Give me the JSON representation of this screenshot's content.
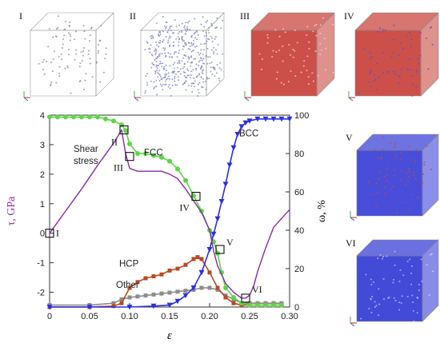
{
  "panels": {
    "top": [
      {
        "label": "I",
        "color": "#bfbfbf",
        "density": "sparse"
      },
      {
        "label": "II",
        "color": "#7a80c8",
        "density": "dense"
      },
      {
        "label": "III",
        "color": "#c9473f",
        "density": "fcc"
      },
      {
        "label": "IV",
        "color": "#c9473f",
        "density": "fcc-mixed"
      }
    ],
    "side": [
      {
        "label": "V",
        "color": "#3e44d8",
        "density": "bcc-mixed"
      },
      {
        "label": "VI",
        "color": "#3a40d6",
        "density": "bcc"
      }
    ]
  },
  "chart_data": {
    "type": "line",
    "xlabel": "ε",
    "ylabel_left": "τ, GPa",
    "ylabel_right": "ω, %",
    "xlim": [
      0,
      0.3
    ],
    "ylim_left": [
      -2.5,
      4
    ],
    "ylim_right": [
      0,
      100
    ],
    "x_ticks": [
      "0",
      "0.05",
      "0.10",
      "0.15",
      "0.20",
      "0.25",
      "0.30"
    ],
    "y_left_ticks": [
      "-2",
      "-1",
      "0",
      "1",
      "2",
      "3",
      "4"
    ],
    "y_right_ticks": [
      "0",
      "20",
      "40",
      "60",
      "80",
      "100"
    ],
    "grid": false,
    "series": [
      {
        "name": "Shear stress",
        "axis": "left",
        "color": "#8a2aa8",
        "marker": "none",
        "x": [
          0,
          0.02,
          0.04,
          0.06,
          0.08,
          0.09,
          0.095,
          0.1,
          0.11,
          0.12,
          0.13,
          0.14,
          0.15,
          0.16,
          0.17,
          0.18,
          0.19,
          0.2,
          0.205,
          0.21,
          0.22,
          0.23,
          0.24,
          0.245,
          0.25,
          0.255,
          0.26,
          0.27,
          0.28,
          0.29,
          0.3
        ],
        "y": [
          0,
          0.75,
          1.5,
          2.3,
          3.05,
          3.5,
          2.7,
          2.2,
          2.1,
          2.1,
          2.1,
          2.1,
          2.0,
          1.85,
          1.5,
          1.1,
          0.7,
          0.1,
          -0.6,
          -1.1,
          -1.7,
          -2.0,
          -2.2,
          -2.2,
          -2.1,
          -1.8,
          -1.3,
          -0.5,
          0.2,
          0.5,
          0.8
        ]
      },
      {
        "name": "FCC",
        "axis": "right",
        "color": "#5cd645",
        "marker": "circle",
        "x": [
          0,
          0.01,
          0.02,
          0.03,
          0.04,
          0.05,
          0.06,
          0.07,
          0.08,
          0.09,
          0.095,
          0.1,
          0.11,
          0.12,
          0.13,
          0.14,
          0.15,
          0.16,
          0.17,
          0.18,
          0.19,
          0.2,
          0.205,
          0.21,
          0.215,
          0.22,
          0.23,
          0.24,
          0.25,
          0.26,
          0.27,
          0.28,
          0.29
        ],
        "y": [
          99,
          99,
          99,
          99,
          99,
          99,
          99,
          98,
          97,
          95,
          92,
          85,
          80,
          80,
          79,
          78,
          76,
          72,
          66,
          58,
          50,
          40,
          34,
          28,
          18,
          10,
          5,
          2,
          1,
          1,
          1,
          1,
          1
        ]
      },
      {
        "name": "BCC",
        "axis": "right",
        "color": "#2c30e0",
        "marker": "triangle-down",
        "x": [
          0,
          0.05,
          0.1,
          0.13,
          0.15,
          0.16,
          0.17,
          0.18,
          0.19,
          0.2,
          0.205,
          0.21,
          0.215,
          0.22,
          0.225,
          0.23,
          0.235,
          0.24,
          0.245,
          0.25,
          0.26,
          0.27,
          0.28,
          0.29,
          0.3
        ],
        "y": [
          0,
          0,
          0,
          0.5,
          1,
          3,
          6,
          10,
          18,
          30,
          38,
          46,
          55,
          64,
          74,
          83,
          90,
          94,
          96,
          97,
          98,
          98,
          98,
          98,
          98
        ]
      },
      {
        "name": "HCP",
        "axis": "right",
        "color": "#b84a26",
        "marker": "square",
        "x": [
          0,
          0.05,
          0.08,
          0.09,
          0.1,
          0.11,
          0.12,
          0.13,
          0.14,
          0.15,
          0.16,
          0.17,
          0.18,
          0.185,
          0.19,
          0.2,
          0.21,
          0.22,
          0.23,
          0.24,
          0.25,
          0.26,
          0.27,
          0.28,
          0.29
        ],
        "y": [
          0,
          0,
          0.5,
          2,
          10,
          13,
          15,
          16,
          17,
          19,
          20,
          22,
          25,
          26,
          25,
          18,
          10,
          5,
          2,
          1,
          1,
          1,
          1,
          1,
          1
        ]
      },
      {
        "name": "Other",
        "axis": "right",
        "color": "#8c8c8c",
        "marker": "square",
        "x": [
          0,
          0.05,
          0.08,
          0.09,
          0.1,
          0.11,
          0.12,
          0.13,
          0.14,
          0.15,
          0.16,
          0.17,
          0.18,
          0.19,
          0.2,
          0.21,
          0.22,
          0.23,
          0.24,
          0.25,
          0.26,
          0.27,
          0.28,
          0.29
        ],
        "y": [
          1,
          1,
          2,
          4,
          5,
          5.5,
          6,
          6.5,
          7,
          7.5,
          8,
          8.5,
          9,
          10,
          10,
          9,
          6,
          4,
          2,
          2,
          2,
          2,
          2,
          2
        ]
      }
    ],
    "annotations": {
      "curve_labels": [
        {
          "text": "Shear",
          "series": "Shear stress"
        },
        {
          "text": "stress",
          "series": "Shear stress"
        },
        {
          "text": "FCC",
          "series": "FCC"
        },
        {
          "text": "BCC",
          "series": "BCC"
        },
        {
          "text": "HCP",
          "series": "HCP"
        },
        {
          "text": "Other",
          "series": "Other"
        }
      ],
      "stages": [
        {
          "label": "I",
          "x": 0.0,
          "tau": 0.0
        },
        {
          "label": "II",
          "x": 0.093,
          "tau": 3.5
        },
        {
          "label": "III",
          "x": 0.1,
          "tau": 2.6
        },
        {
          "label": "IV",
          "x": 0.183,
          "tau": 1.25
        },
        {
          "label": "V",
          "x": 0.213,
          "tau": -0.55
        },
        {
          "label": "VI",
          "x": 0.245,
          "tau": -2.2
        }
      ]
    }
  }
}
